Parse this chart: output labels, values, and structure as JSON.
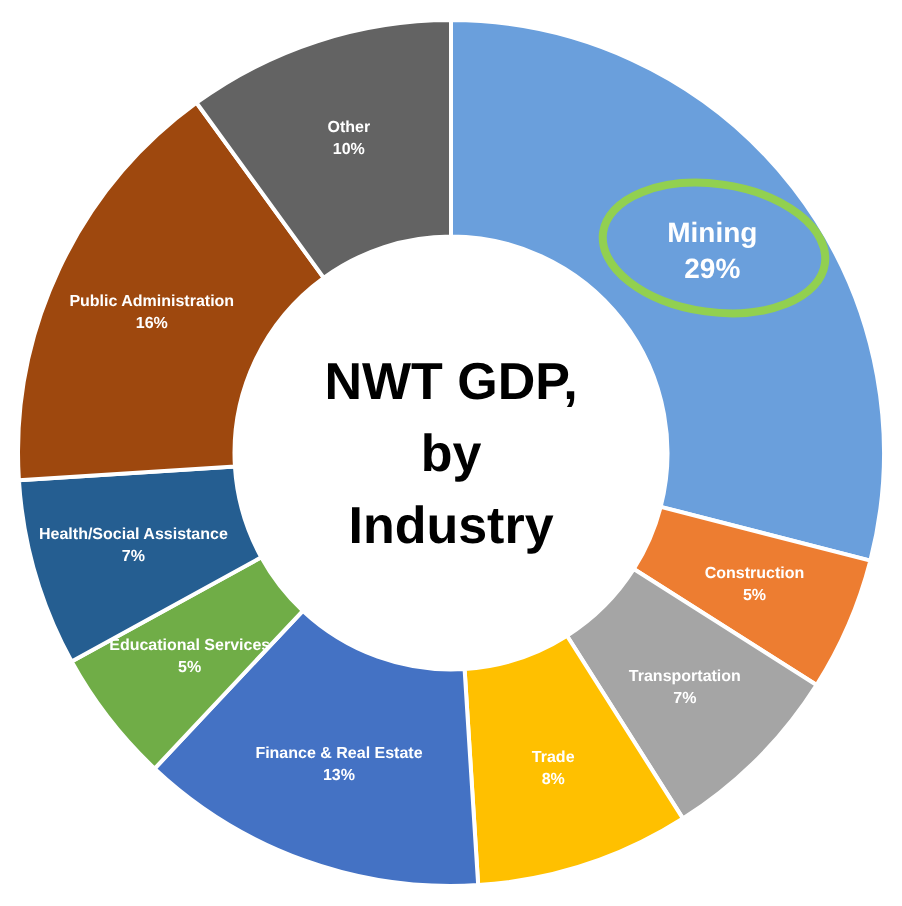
{
  "chart_data": {
    "type": "donut",
    "title": "NWT GDP, by Industry",
    "categories": [
      "Mining",
      "Construction",
      "Transportation",
      "Trade",
      "Finance & Real Estate",
      "Educational Services",
      "Health/Social Assistance",
      "Public Administration",
      "Other"
    ],
    "values": [
      29,
      5,
      7,
      8,
      13,
      5,
      7,
      16,
      10
    ],
    "colors": [
      "#6a9fdc",
      "#ed7d31",
      "#a5a5a5",
      "#ffc000",
      "#4472c4",
      "#70ad47",
      "#255e91",
      "#9e480e",
      "#636363"
    ],
    "value_labels": [
      "29%",
      "5%",
      "7%",
      "8%",
      "13%",
      "5%",
      "7%",
      "16%",
      "10%"
    ],
    "legend": false
  }
}
